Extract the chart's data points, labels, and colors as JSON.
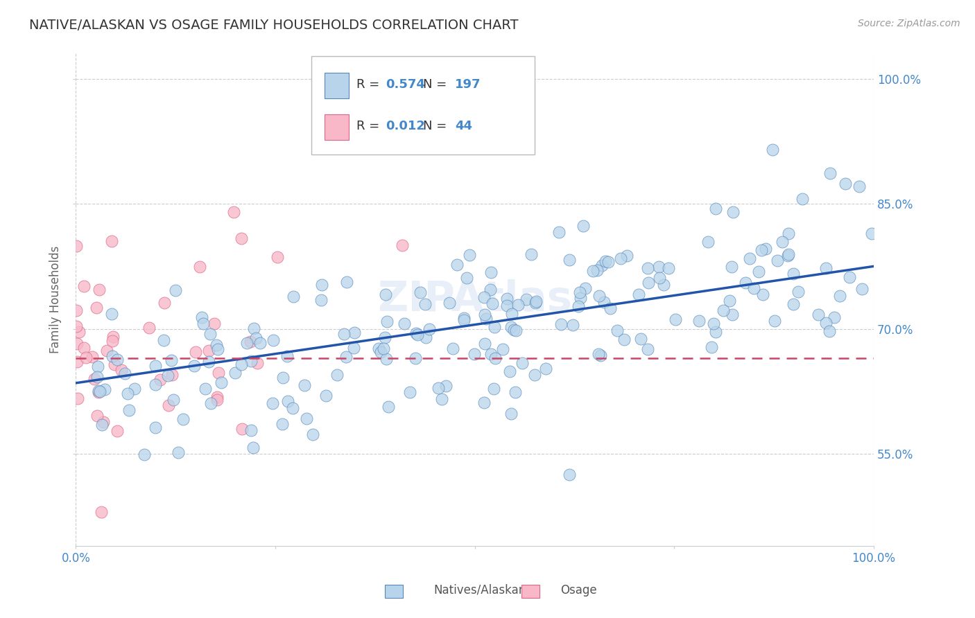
{
  "title": "NATIVE/ALASKAN VS OSAGE FAMILY HOUSEHOLDS CORRELATION CHART",
  "source": "Source: ZipAtlas.com",
  "ylabel": "Family Households",
  "blue_R": 0.574,
  "blue_N": 197,
  "pink_R": 0.012,
  "pink_N": 44,
  "blue_color": "#b8d4ea",
  "blue_edge_color": "#5588bb",
  "blue_line_color": "#2255aa",
  "pink_color": "#f8b8c8",
  "pink_edge_color": "#dd6688",
  "pink_line_color": "#cc4466",
  "xmin": 0.0,
  "xmax": 1.0,
  "ymin": 0.44,
  "ymax": 1.03,
  "yticks": [
    0.55,
    0.7,
    0.85,
    1.0
  ],
  "ytick_labels": [
    "55.0%",
    "70.0%",
    "85.0%",
    "100.0%"
  ],
  "xticks": [
    0.0,
    0.25,
    0.5,
    0.75,
    1.0
  ],
  "grid_color": "#cccccc",
  "background_color": "#ffffff",
  "title_color": "#333333",
  "watermark": "ZIPAtlas",
  "legend_label1": "Natives/Alaskans",
  "legend_label2": "Osage",
  "tick_color": "#4488cc",
  "ylabel_color": "#666666",
  "source_color": "#999999",
  "blue_line_start_y": 0.635,
  "blue_line_end_y": 0.775,
  "pink_line_y": 0.665
}
